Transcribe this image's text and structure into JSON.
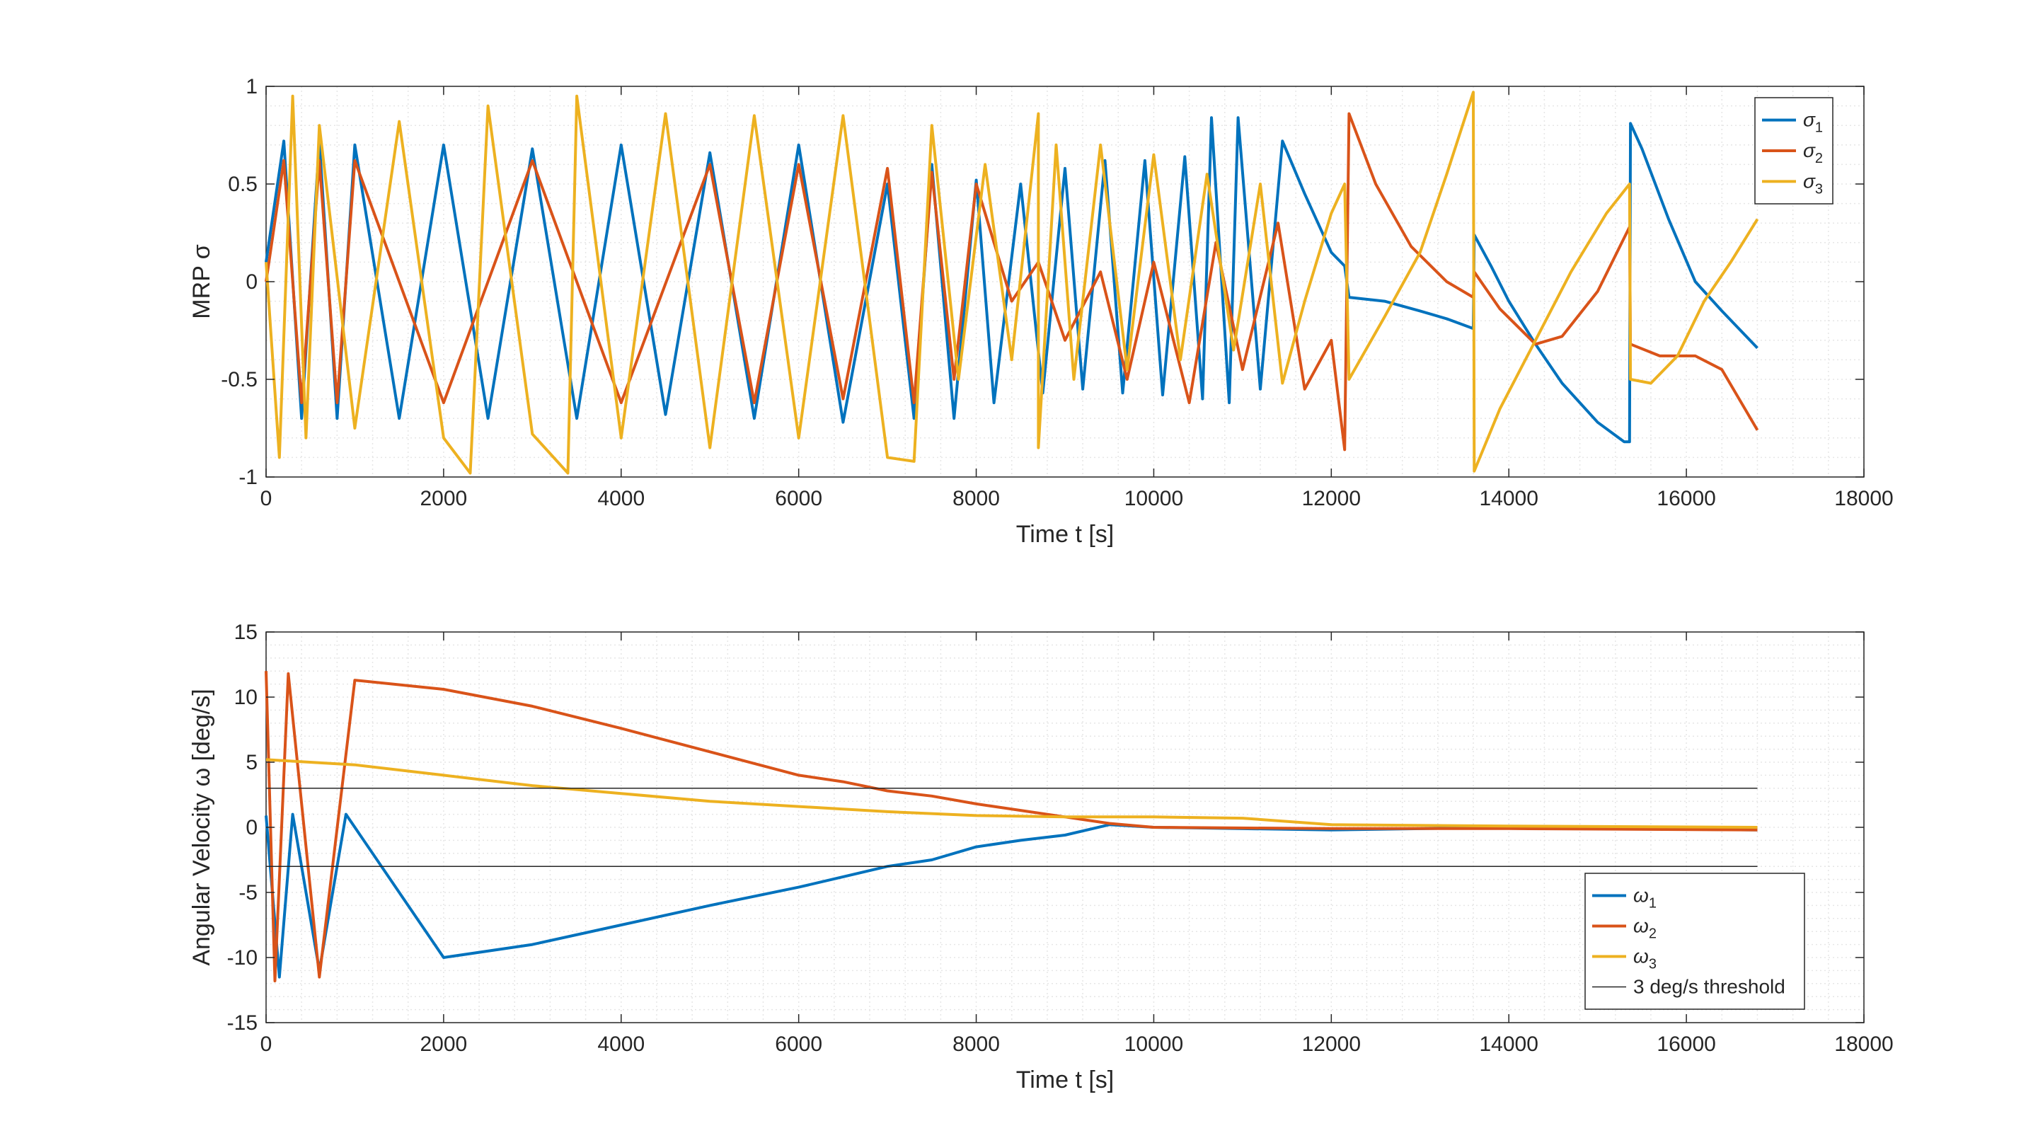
{
  "chart_data": [
    {
      "type": "line",
      "xlabel": "Time t [s]",
      "ylabel": "MRP σ",
      "xlim": [
        0,
        18000
      ],
      "ylim": [
        -1,
        1
      ],
      "xticks": [
        0,
        2000,
        4000,
        6000,
        8000,
        10000,
        12000,
        14000,
        16000,
        18000
      ],
      "yticks": [
        -1,
        -0.5,
        0,
        0.5,
        1
      ],
      "grid": "minor-dotted",
      "legend_position": "top-right",
      "series": [
        {
          "name": "σ",
          "subscript": "1",
          "color": "#0072BD",
          "points": [
            [
              0,
              0.1
            ],
            [
              200,
              0.72
            ],
            [
              400,
              -0.7
            ],
            [
              600,
              0.72
            ],
            [
              800,
              -0.7
            ],
            [
              1000,
              0.7
            ],
            [
              1500,
              -0.7
            ],
            [
              2000,
              0.7
            ],
            [
              2500,
              -0.7
            ],
            [
              3000,
              0.68
            ],
            [
              3500,
              -0.7
            ],
            [
              4000,
              0.7
            ],
            [
              4500,
              -0.68
            ],
            [
              5000,
              0.66
            ],
            [
              5500,
              -0.7
            ],
            [
              6000,
              0.7
            ],
            [
              6500,
              -0.72
            ],
            [
              7000,
              0.5
            ],
            [
              7300,
              -0.7
            ],
            [
              7500,
              0.6
            ],
            [
              7750,
              -0.7
            ],
            [
              8000,
              0.52
            ],
            [
              8200,
              -0.62
            ],
            [
              8500,
              0.5
            ],
            [
              8750,
              -0.57
            ],
            [
              9000,
              0.58
            ],
            [
              9200,
              -0.55
            ],
            [
              9450,
              0.62
            ],
            [
              9650,
              -0.57
            ],
            [
              9900,
              0.62
            ],
            [
              10100,
              -0.58
            ],
            [
              10350,
              0.64
            ],
            [
              10550,
              -0.6
            ],
            [
              10650,
              0.84
            ],
            [
              10850,
              -0.62
            ],
            [
              10950,
              0.84
            ],
            [
              11200,
              -0.55
            ],
            [
              11450,
              0.72
            ],
            [
              11700,
              0.45
            ],
            [
              12000,
              0.15
            ],
            [
              12150,
              0.08
            ],
            [
              12200,
              -0.08
            ],
            [
              12600,
              -0.1
            ],
            [
              13000,
              -0.15
            ],
            [
              13300,
              -0.19
            ],
            [
              13600,
              -0.24
            ],
            [
              13610,
              0.24
            ],
            [
              13800,
              0.08
            ],
            [
              14000,
              -0.1
            ],
            [
              14300,
              -0.32
            ],
            [
              14600,
              -0.52
            ],
            [
              15000,
              -0.72
            ],
            [
              15300,
              -0.82
            ],
            [
              15360,
              -0.82
            ],
            [
              15370,
              0.81
            ],
            [
              15500,
              0.68
            ],
            [
              15800,
              0.32
            ],
            [
              16100,
              0.0
            ],
            [
              16400,
              -0.15
            ],
            [
              16800,
              -0.34
            ]
          ]
        },
        {
          "name": "σ",
          "subscript": "2",
          "color": "#D95319",
          "points": [
            [
              0,
              0.0
            ],
            [
              200,
              0.62
            ],
            [
              400,
              -0.62
            ],
            [
              600,
              0.62
            ],
            [
              800,
              -0.62
            ],
            [
              1000,
              0.62
            ],
            [
              2000,
              -0.62
            ],
            [
              3000,
              0.62
            ],
            [
              4000,
              -0.62
            ],
            [
              5000,
              0.6
            ],
            [
              5500,
              -0.62
            ],
            [
              6000,
              0.6
            ],
            [
              6500,
              -0.6
            ],
            [
              7000,
              0.58
            ],
            [
              7300,
              -0.62
            ],
            [
              7500,
              0.56
            ],
            [
              7750,
              -0.5
            ],
            [
              8000,
              0.5
            ],
            [
              8400,
              -0.1
            ],
            [
              8700,
              0.1
            ],
            [
              9000,
              -0.3
            ],
            [
              9400,
              0.05
            ],
            [
              9700,
              -0.5
            ],
            [
              10000,
              0.1
            ],
            [
              10400,
              -0.62
            ],
            [
              10700,
              0.2
            ],
            [
              11000,
              -0.45
            ],
            [
              11400,
              0.3
            ],
            [
              11700,
              -0.55
            ],
            [
              12000,
              -0.3
            ],
            [
              12150,
              -0.86
            ],
            [
              12200,
              0.86
            ],
            [
              12500,
              0.5
            ],
            [
              12900,
              0.18
            ],
            [
              13300,
              0.0
            ],
            [
              13600,
              -0.08
            ],
            [
              13610,
              0.05
            ],
            [
              13900,
              -0.14
            ],
            [
              14300,
              -0.32
            ],
            [
              14600,
              -0.28
            ],
            [
              15000,
              -0.05
            ],
            [
              15360,
              0.28
            ],
            [
              15370,
              -0.32
            ],
            [
              15700,
              -0.38
            ],
            [
              16100,
              -0.38
            ],
            [
              16400,
              -0.45
            ],
            [
              16800,
              -0.76
            ]
          ]
        },
        {
          "name": "σ",
          "subscript": "3",
          "color": "#EDB120",
          "points": [
            [
              0,
              0.1
            ],
            [
              150,
              -0.9
            ],
            [
              300,
              0.95
            ],
            [
              450,
              -0.8
            ],
            [
              600,
              0.8
            ],
            [
              1000,
              -0.75
            ],
            [
              1500,
              0.82
            ],
            [
              2000,
              -0.8
            ],
            [
              2300,
              -0.98
            ],
            [
              2500,
              0.9
            ],
            [
              3000,
              -0.78
            ],
            [
              3400,
              -0.98
            ],
            [
              3500,
              0.95
            ],
            [
              4000,
              -0.8
            ],
            [
              4500,
              0.86
            ],
            [
              5000,
              -0.85
            ],
            [
              5500,
              0.85
            ],
            [
              6000,
              -0.8
            ],
            [
              6500,
              0.85
            ],
            [
              7000,
              -0.9
            ],
            [
              7300,
              -0.92
            ],
            [
              7500,
              0.8
            ],
            [
              7800,
              -0.5
            ],
            [
              8100,
              0.6
            ],
            [
              8400,
              -0.4
            ],
            [
              8700,
              0.86
            ],
            [
              8700,
              -0.85
            ],
            [
              8900,
              0.7
            ],
            [
              9100,
              -0.5
            ],
            [
              9400,
              0.7
            ],
            [
              9700,
              -0.45
            ],
            [
              10000,
              0.65
            ],
            [
              10300,
              -0.4
            ],
            [
              10600,
              0.55
            ],
            [
              10900,
              -0.35
            ],
            [
              11200,
              0.5
            ],
            [
              11450,
              -0.52
            ],
            [
              11700,
              -0.1
            ],
            [
              12000,
              0.35
            ],
            [
              12150,
              0.5
            ],
            [
              12200,
              -0.5
            ],
            [
              12600,
              -0.18
            ],
            [
              13000,
              0.15
            ],
            [
              13300,
              0.55
            ],
            [
              13600,
              0.97
            ],
            [
              13610,
              -0.97
            ],
            [
              13900,
              -0.65
            ],
            [
              14300,
              -0.3
            ],
            [
              14700,
              0.05
            ],
            [
              15100,
              0.35
            ],
            [
              15360,
              0.5
            ],
            [
              15370,
              -0.5
            ],
            [
              15600,
              -0.52
            ],
            [
              15900,
              -0.38
            ],
            [
              16200,
              -0.1
            ],
            [
              16500,
              0.1
            ],
            [
              16800,
              0.32
            ]
          ]
        }
      ]
    },
    {
      "type": "line",
      "xlabel": "Time t [s]",
      "ylabel": "Angular Velocity ω [deg/s]",
      "xlim": [
        0,
        18000
      ],
      "ylim": [
        -15,
        15
      ],
      "xticks": [
        0,
        2000,
        4000,
        6000,
        8000,
        10000,
        12000,
        14000,
        16000,
        18000
      ],
      "yticks": [
        -15,
        -10,
        -5,
        0,
        5,
        10,
        15
      ],
      "grid": "minor-dotted",
      "legend_position": "bottom-right",
      "series": [
        {
          "name": "ω",
          "subscript": "1",
          "color": "#0072BD",
          "points": [
            [
              0,
              0.9
            ],
            [
              150,
              -11.5
            ],
            [
              300,
              1.0
            ],
            [
              600,
              -11.0
            ],
            [
              900,
              1.0
            ],
            [
              2000,
              -10.0
            ],
            [
              3000,
              -9.0
            ],
            [
              4000,
              -7.5
            ],
            [
              5000,
              -6.0
            ],
            [
              6000,
              -4.6
            ],
            [
              6500,
              -3.8
            ],
            [
              7000,
              -3.0
            ],
            [
              7500,
              -2.5
            ],
            [
              8000,
              -1.5
            ],
            [
              8500,
              -1.0
            ],
            [
              9000,
              -0.6
            ],
            [
              9500,
              0.2
            ],
            [
              10000,
              0.0
            ],
            [
              12000,
              -0.2
            ],
            [
              14000,
              0.0
            ],
            [
              16800,
              -0.2
            ]
          ]
        },
        {
          "name": "ω",
          "subscript": "2",
          "color": "#D95319",
          "points": [
            [
              0,
              12.0
            ],
            [
              100,
              -11.8
            ],
            [
              250,
              11.8
            ],
            [
              600,
              -11.5
            ],
            [
              1000,
              11.3
            ],
            [
              2000,
              10.6
            ],
            [
              3000,
              9.3
            ],
            [
              4000,
              7.6
            ],
            [
              5000,
              5.8
            ],
            [
              6000,
              4.0
            ],
            [
              6500,
              3.5
            ],
            [
              7000,
              2.8
            ],
            [
              7500,
              2.4
            ],
            [
              8000,
              1.8
            ],
            [
              8500,
              1.3
            ],
            [
              9000,
              0.8
            ],
            [
              9500,
              0.3
            ],
            [
              10000,
              0.0
            ],
            [
              12000,
              -0.1
            ],
            [
              14000,
              -0.1
            ],
            [
              16800,
              -0.2
            ]
          ]
        },
        {
          "name": "ω",
          "subscript": "3",
          "color": "#EDB120",
          "points": [
            [
              0,
              5.2
            ],
            [
              1000,
              4.8
            ],
            [
              2000,
              4.0
            ],
            [
              3000,
              3.2
            ],
            [
              4000,
              2.6
            ],
            [
              5000,
              2.0
            ],
            [
              6000,
              1.6
            ],
            [
              7000,
              1.2
            ],
            [
              8000,
              0.9
            ],
            [
              9000,
              0.8
            ],
            [
              10000,
              0.8
            ],
            [
              11000,
              0.7
            ],
            [
              12000,
              0.2
            ],
            [
              14000,
              0.1
            ],
            [
              16800,
              0.0
            ]
          ]
        },
        {
          "name": "3 deg/s threshold",
          "color": "#262626",
          "points": [
            [
              0,
              3
            ],
            [
              16800,
              3
            ]
          ],
          "mirror": [
            [
              0,
              -3
            ],
            [
              16800,
              -3
            ]
          ]
        }
      ]
    }
  ]
}
